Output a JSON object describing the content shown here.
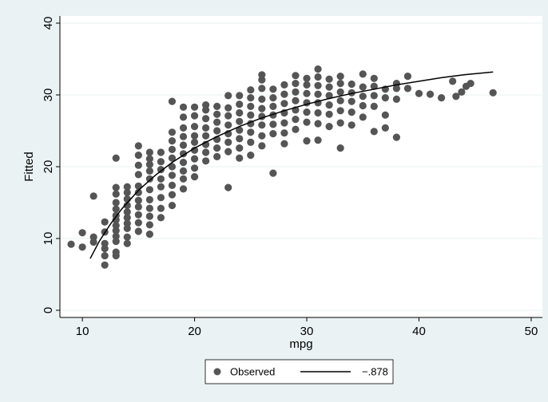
{
  "chart_data": {
    "type": "scatter",
    "xlabel": "mpg",
    "ylabel": "Fitted",
    "xlim": [
      8,
      51
    ],
    "ylim": [
      -1,
      41
    ],
    "xticks": [
      10,
      20,
      30,
      40,
      50
    ],
    "yticks": [
      0,
      10,
      20,
      30,
      40
    ],
    "grid": "horizontal",
    "legend_position": "bottom",
    "colors": {
      "background": "#eaf2f3",
      "plot_background": "#ffffff",
      "points": "#555555",
      "fit_line": "#000000",
      "grid": "#eaf2f3"
    },
    "series": [
      {
        "name": "Observed",
        "kind": "scatter",
        "points": [
          [
            9,
            9.2
          ],
          [
            10,
            8.8
          ],
          [
            10,
            10.8
          ],
          [
            11,
            9.5
          ],
          [
            11,
            10.2
          ],
          [
            11,
            15.9
          ],
          [
            12,
            6.3
          ],
          [
            12,
            7.6
          ],
          [
            12,
            8.6
          ],
          [
            12,
            9.3
          ],
          [
            12,
            10.9
          ],
          [
            12,
            12.3
          ],
          [
            13,
            7.6
          ],
          [
            13,
            8.1
          ],
          [
            13,
            9.6
          ],
          [
            13,
            10.3
          ],
          [
            13,
            11.1
          ],
          [
            13,
            11.8
          ],
          [
            13,
            12.6
          ],
          [
            13,
            13.2
          ],
          [
            13,
            14.1
          ],
          [
            13,
            15.0
          ],
          [
            13,
            16.2
          ],
          [
            13,
            17.1
          ],
          [
            13,
            21.2
          ],
          [
            14,
            9.3
          ],
          [
            14,
            10.2
          ],
          [
            14,
            11.4
          ],
          [
            14,
            12.1
          ],
          [
            14,
            12.9
          ],
          [
            14,
            13.7
          ],
          [
            14,
            14.6
          ],
          [
            14,
            15.5
          ],
          [
            14,
            16.4
          ],
          [
            14,
            17.2
          ],
          [
            15,
            11.0
          ],
          [
            15,
            12.2
          ],
          [
            15,
            13.3
          ],
          [
            15,
            14.4
          ],
          [
            15,
            15.3
          ],
          [
            15,
            16.4
          ],
          [
            15,
            17.3
          ],
          [
            15,
            18.9
          ],
          [
            15,
            20.2
          ],
          [
            15,
            21.6
          ],
          [
            15,
            22.9
          ],
          [
            16,
            10.6
          ],
          [
            16,
            11.9
          ],
          [
            16,
            13.1
          ],
          [
            16,
            14.2
          ],
          [
            16,
            15.4
          ],
          [
            16,
            16.8
          ],
          [
            16,
            18.3
          ],
          [
            16,
            19.4
          ],
          [
            16,
            20.3
          ],
          [
            16,
            21.1
          ],
          [
            16,
            22.0
          ],
          [
            17,
            12.9
          ],
          [
            17,
            14.2
          ],
          [
            17,
            15.7
          ],
          [
            17,
            17.2
          ],
          [
            17,
            18.3
          ],
          [
            17,
            19.6
          ],
          [
            17,
            20.7
          ],
          [
            17,
            22.0
          ],
          [
            18,
            14.6
          ],
          [
            18,
            16.1
          ],
          [
            18,
            17.4
          ],
          [
            18,
            18.8
          ],
          [
            18,
            20.0
          ],
          [
            18,
            21.2
          ],
          [
            18,
            22.4
          ],
          [
            18,
            23.6
          ],
          [
            18,
            24.8
          ],
          [
            18,
            29.1
          ],
          [
            19,
            16.9
          ],
          [
            19,
            18.3
          ],
          [
            19,
            19.4
          ],
          [
            19,
            20.6
          ],
          [
            19,
            21.8
          ],
          [
            19,
            23.0
          ],
          [
            19,
            24.2
          ],
          [
            19,
            25.4
          ],
          [
            19,
            26.9
          ],
          [
            19,
            28.3
          ],
          [
            20,
            18.6
          ],
          [
            20,
            19.8
          ],
          [
            20,
            21.1
          ],
          [
            20,
            22.3
          ],
          [
            20,
            23.4
          ],
          [
            20,
            24.3
          ],
          [
            20,
            25.6
          ],
          [
            20,
            27.1
          ],
          [
            20,
            28.3
          ],
          [
            21,
            20.8
          ],
          [
            21,
            22.0
          ],
          [
            21,
            23.1
          ],
          [
            21,
            24.3
          ],
          [
            21,
            25.4
          ],
          [
            21,
            26.7
          ],
          [
            21,
            27.9
          ],
          [
            21,
            28.6
          ],
          [
            22,
            21.4
          ],
          [
            22,
            22.6
          ],
          [
            22,
            23.8
          ],
          [
            22,
            25.0
          ],
          [
            22,
            26.2
          ],
          [
            22,
            27.3
          ],
          [
            22,
            28.4
          ],
          [
            23,
            17.1
          ],
          [
            23,
            22.1
          ],
          [
            23,
            23.4
          ],
          [
            23,
            24.6
          ],
          [
            23,
            25.8
          ],
          [
            23,
            27.1
          ],
          [
            23,
            28.2
          ],
          [
            23,
            29.9
          ],
          [
            24,
            21.2
          ],
          [
            24,
            22.6
          ],
          [
            24,
            23.9
          ],
          [
            24,
            25.1
          ],
          [
            24,
            26.3
          ],
          [
            24,
            27.5
          ],
          [
            24,
            28.7
          ],
          [
            24,
            29.9
          ],
          [
            25,
            21.6
          ],
          [
            25,
            23.4
          ],
          [
            25,
            24.8
          ],
          [
            25,
            26.0
          ],
          [
            25,
            27.2
          ],
          [
            25,
            28.4
          ],
          [
            25,
            29.6
          ],
          [
            25,
            30.7
          ],
          [
            26,
            22.9
          ],
          [
            26,
            24.3
          ],
          [
            26,
            25.8
          ],
          [
            26,
            27.0
          ],
          [
            26,
            28.1
          ],
          [
            26,
            29.4
          ],
          [
            26,
            30.9
          ],
          [
            26,
            32.1
          ],
          [
            26,
            32.8
          ],
          [
            27,
            19.1
          ],
          [
            27,
            24.6
          ],
          [
            27,
            25.9
          ],
          [
            27,
            27.2
          ],
          [
            27,
            28.4
          ],
          [
            27,
            29.6
          ],
          [
            27,
            30.8
          ],
          [
            28,
            23.2
          ],
          [
            28,
            24.7
          ],
          [
            28,
            26.1
          ],
          [
            28,
            27.5
          ],
          [
            28,
            28.8
          ],
          [
            28,
            30.1
          ],
          [
            28,
            31.4
          ],
          [
            29,
            25.2
          ],
          [
            29,
            26.6
          ],
          [
            29,
            27.9
          ],
          [
            29,
            29.2
          ],
          [
            29,
            30.4
          ],
          [
            29,
            31.6
          ],
          [
            29,
            32.7
          ],
          [
            30,
            23.6
          ],
          [
            30,
            26.2
          ],
          [
            30,
            27.6
          ],
          [
            30,
            28.9
          ],
          [
            30,
            30.2
          ],
          [
            30,
            31.4
          ],
          [
            30,
            32.3
          ],
          [
            31,
            23.7
          ],
          [
            31,
            26.0
          ],
          [
            31,
            27.5
          ],
          [
            31,
            28.9
          ],
          [
            31,
            30.1
          ],
          [
            31,
            31.3
          ],
          [
            31,
            32.5
          ],
          [
            31,
            33.6
          ],
          [
            32,
            25.6
          ],
          [
            32,
            27.3
          ],
          [
            32,
            28.6
          ],
          [
            32,
            29.9
          ],
          [
            32,
            31.1
          ],
          [
            32,
            32.2
          ],
          [
            33,
            22.6
          ],
          [
            33,
            26.1
          ],
          [
            33,
            27.8
          ],
          [
            33,
            29.2
          ],
          [
            33,
            30.4
          ],
          [
            33,
            31.6
          ],
          [
            33,
            32.6
          ],
          [
            34,
            25.8
          ],
          [
            34,
            27.6
          ],
          [
            34,
            29.1
          ],
          [
            34,
            30.3
          ],
          [
            34,
            31.5
          ],
          [
            35,
            26.9
          ],
          [
            35,
            28.5
          ],
          [
            35,
            29.8
          ],
          [
            35,
            31.1
          ],
          [
            35,
            32.9
          ],
          [
            36,
            24.9
          ],
          [
            36,
            28.4
          ],
          [
            36,
            29.9
          ],
          [
            36,
            31.2
          ],
          [
            36,
            32.3
          ],
          [
            37,
            25.4
          ],
          [
            37,
            27.2
          ],
          [
            37,
            29.6
          ],
          [
            37,
            30.8
          ],
          [
            38,
            24.1
          ],
          [
            38,
            29.4
          ],
          [
            38,
            30.9
          ],
          [
            38,
            31.6
          ],
          [
            39,
            30.9
          ],
          [
            39,
            32.6
          ],
          [
            40,
            30.2
          ],
          [
            41,
            30.1
          ],
          [
            42,
            29.6
          ],
          [
            43,
            31.9
          ],
          [
            43.3,
            29.8
          ],
          [
            43.8,
            30.4
          ],
          [
            44.2,
            31.2
          ],
          [
            44.6,
            31.6
          ],
          [
            46.6,
            30.3
          ]
        ]
      },
      {
        "name": "−.878",
        "kind": "line",
        "points": [
          [
            10.7,
            7.2
          ],
          [
            11.5,
            9.6
          ],
          [
            12.5,
            12.0
          ],
          [
            13.5,
            14.1
          ],
          [
            15,
            16.7
          ],
          [
            16.5,
            18.8
          ],
          [
            18,
            20.6
          ],
          [
            20,
            22.6
          ],
          [
            22,
            24.2
          ],
          [
            24,
            25.6
          ],
          [
            26,
            26.8
          ],
          [
            28,
            27.8
          ],
          [
            30,
            28.7
          ],
          [
            32,
            29.5
          ],
          [
            34,
            30.2
          ],
          [
            36,
            30.8
          ],
          [
            38,
            31.4
          ],
          [
            40,
            31.9
          ],
          [
            42,
            32.4
          ],
          [
            44,
            32.8
          ],
          [
            46.6,
            33.2
          ]
        ]
      }
    ]
  }
}
